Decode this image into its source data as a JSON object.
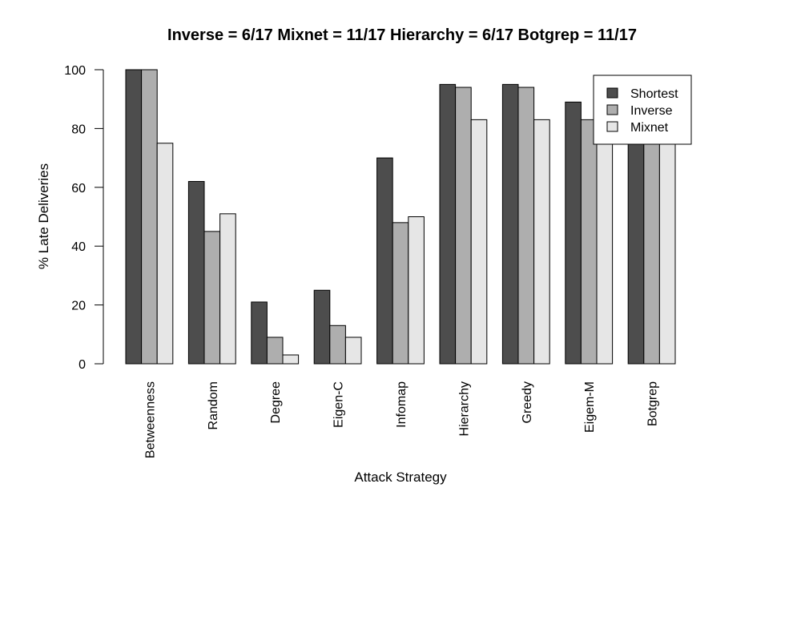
{
  "chart_data": {
    "type": "bar",
    "title": "Inverse = 6/17 Mixnet = 11/17 Hierarchy = 6/17 Botgrep = 11/17",
    "xlabel": "Attack Strategy",
    "ylabel": "% Late Deliveries",
    "ylim": [
      0,
      100
    ],
    "yticks": [
      0,
      20,
      40,
      60,
      80,
      100
    ],
    "categories": [
      "Betweenness",
      "Random",
      "Degree",
      "Eigen-C",
      "Infomap",
      "Hierarchy",
      "Greedy",
      "Eigem-M",
      "Botgrep"
    ],
    "series": [
      {
        "name": "Shortest",
        "color": "#4d4d4d",
        "values": [
          100,
          62,
          21,
          25,
          70,
          95,
          95,
          89,
          82
        ]
      },
      {
        "name": "Inverse",
        "color": "#aeaeae",
        "values": [
          100,
          45,
          9,
          13,
          48,
          94,
          94,
          83,
          80
        ]
      },
      {
        "name": "Mixnet",
        "color": "#e6e6e6",
        "values": [
          75,
          51,
          3,
          9,
          50,
          83,
          83,
          80,
          79
        ]
      }
    ],
    "legend_position": "top-right",
    "grid": false
  }
}
